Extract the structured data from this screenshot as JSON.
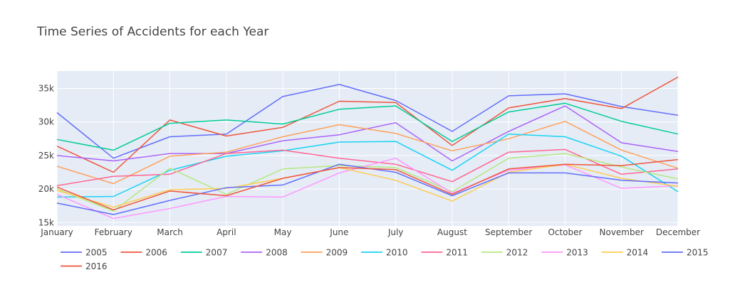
{
  "chart_data": {
    "type": "line",
    "title": "Time Series of Accidents for each Year",
    "xlabel": "",
    "ylabel": "",
    "categories": [
      "January",
      "February",
      "March",
      "April",
      "May",
      "June",
      "July",
      "August",
      "September",
      "October",
      "November",
      "December"
    ],
    "y_ticks": [
      15000,
      20000,
      25000,
      30000,
      35000
    ],
    "y_tick_labels": [
      "15k",
      "20k",
      "25k",
      "30k",
      "35k"
    ],
    "ylim": [
      14500,
      37600
    ],
    "grid": true,
    "legend_position": "bottom-left",
    "plot_background": "#e5ecf6",
    "title_color": "#444444",
    "series": [
      {
        "name": "2005",
        "color": "#636efa",
        "values": [
          31400,
          24600,
          27800,
          28200,
          33800,
          35600,
          33200,
          28600,
          33900,
          34200,
          32300,
          31000
        ]
      },
      {
        "name": "2006",
        "color": "#ef553b",
        "values": [
          26400,
          22500,
          30300,
          27900,
          29200,
          33100,
          32900,
          26500,
          32100,
          33500,
          32000,
          36700
        ]
      },
      {
        "name": "2007",
        "color": "#00cc96",
        "values": [
          27400,
          25800,
          29800,
          30300,
          29700,
          31900,
          32400,
          27100,
          31500,
          32800,
          30100,
          28200
        ]
      },
      {
        "name": "2008",
        "color": "#ab63fa",
        "values": [
          25000,
          24200,
          25300,
          25300,
          27200,
          28100,
          29900,
          24200,
          28600,
          32400,
          26900,
          25600
        ]
      },
      {
        "name": "2009",
        "color": "#ffa15a",
        "values": [
          23400,
          20800,
          24900,
          25500,
          27800,
          29600,
          28300,
          25700,
          27500,
          30100,
          25800,
          23100
        ]
      },
      {
        "name": "2010",
        "color": "#19d3f3",
        "values": [
          18800,
          18900,
          22800,
          24900,
          25700,
          27000,
          27100,
          22800,
          28200,
          27800,
          24900,
          19600
        ]
      },
      {
        "name": "2011",
        "color": "#ff6692",
        "values": [
          20500,
          21900,
          22200,
          25300,
          25800,
          24600,
          23700,
          21100,
          25500,
          25900,
          22200,
          23000
        ]
      },
      {
        "name": "2012",
        "color": "#b6e880",
        "values": [
          20000,
          16700,
          23100,
          19200,
          23000,
          23500,
          23200,
          19600,
          24600,
          25300,
          23300,
          21500
        ]
      },
      {
        "name": "2013",
        "color": "#ff97ff",
        "values": [
          19200,
          15600,
          17100,
          18900,
          18800,
          22400,
          24600,
          19400,
          22800,
          23600,
          20100,
          20500
        ]
      },
      {
        "name": "2014",
        "color": "#fecb52",
        "values": [
          19800,
          17300,
          19900,
          20100,
          21600,
          23200,
          21300,
          18200,
          22500,
          23700,
          21600,
          20400
        ]
      },
      {
        "name": "2015",
        "color": "#636efa",
        "values": [
          17900,
          16200,
          18300,
          20200,
          20600,
          23700,
          22500,
          19000,
          22400,
          22400,
          21300,
          20900
        ]
      },
      {
        "name": "2016",
        "color": "#ef553b",
        "values": [
          20300,
          16900,
          19700,
          19000,
          21600,
          23200,
          22900,
          19200,
          23000,
          23700,
          23500,
          24400
        ]
      }
    ]
  }
}
